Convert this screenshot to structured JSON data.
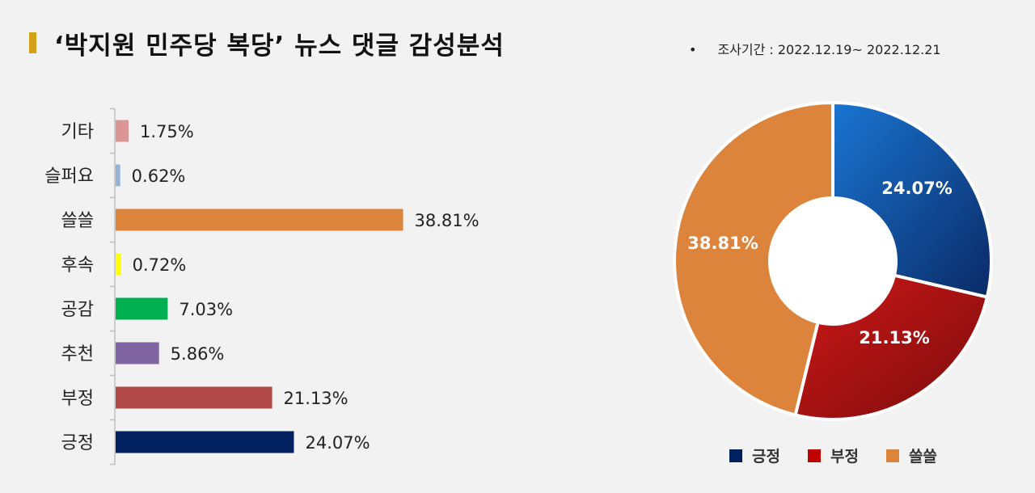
{
  "header": {
    "title": "‘박지원 민주당 복당’ 뉴스 댓글 감성분석",
    "period_bullet": "•",
    "period": "조사기간 : 2022.12.19~ 2022.12.21"
  },
  "colors": {
    "title_accent": "#d4a017"
  },
  "chart_data": [
    {
      "type": "bar",
      "orientation": "horizontal",
      "categories": [
        "기타",
        "슬퍼요",
        "쓸쓸",
        "후속",
        "공감",
        "추천",
        "부정",
        "긍정"
      ],
      "values": [
        1.75,
        0.62,
        38.81,
        0.72,
        7.03,
        5.86,
        21.13,
        24.07
      ],
      "labels": [
        "1.75%",
        "0.62%",
        "38.81%",
        "0.72%",
        "7.03%",
        "5.86%",
        "21.13%",
        "24.07%"
      ],
      "colors": [
        "#d99694",
        "#95b3d7",
        "#dd843c",
        "#ffff00",
        "#00b050",
        "#8064a2",
        "#b04848",
        "#002060"
      ],
      "unit": "%",
      "xlim": [
        0,
        100
      ],
      "grid": false
    },
    {
      "type": "pie",
      "style": "donut",
      "categories": [
        "긍정",
        "부정",
        "쓸쓸"
      ],
      "values": [
        24.07,
        21.13,
        38.81
      ],
      "labels": [
        "24.07%",
        "21.13%",
        "38.81%"
      ],
      "colors": [
        "#1565c0",
        "#b01010",
        "#dd843c"
      ],
      "legend_position": "bottom"
    }
  ]
}
